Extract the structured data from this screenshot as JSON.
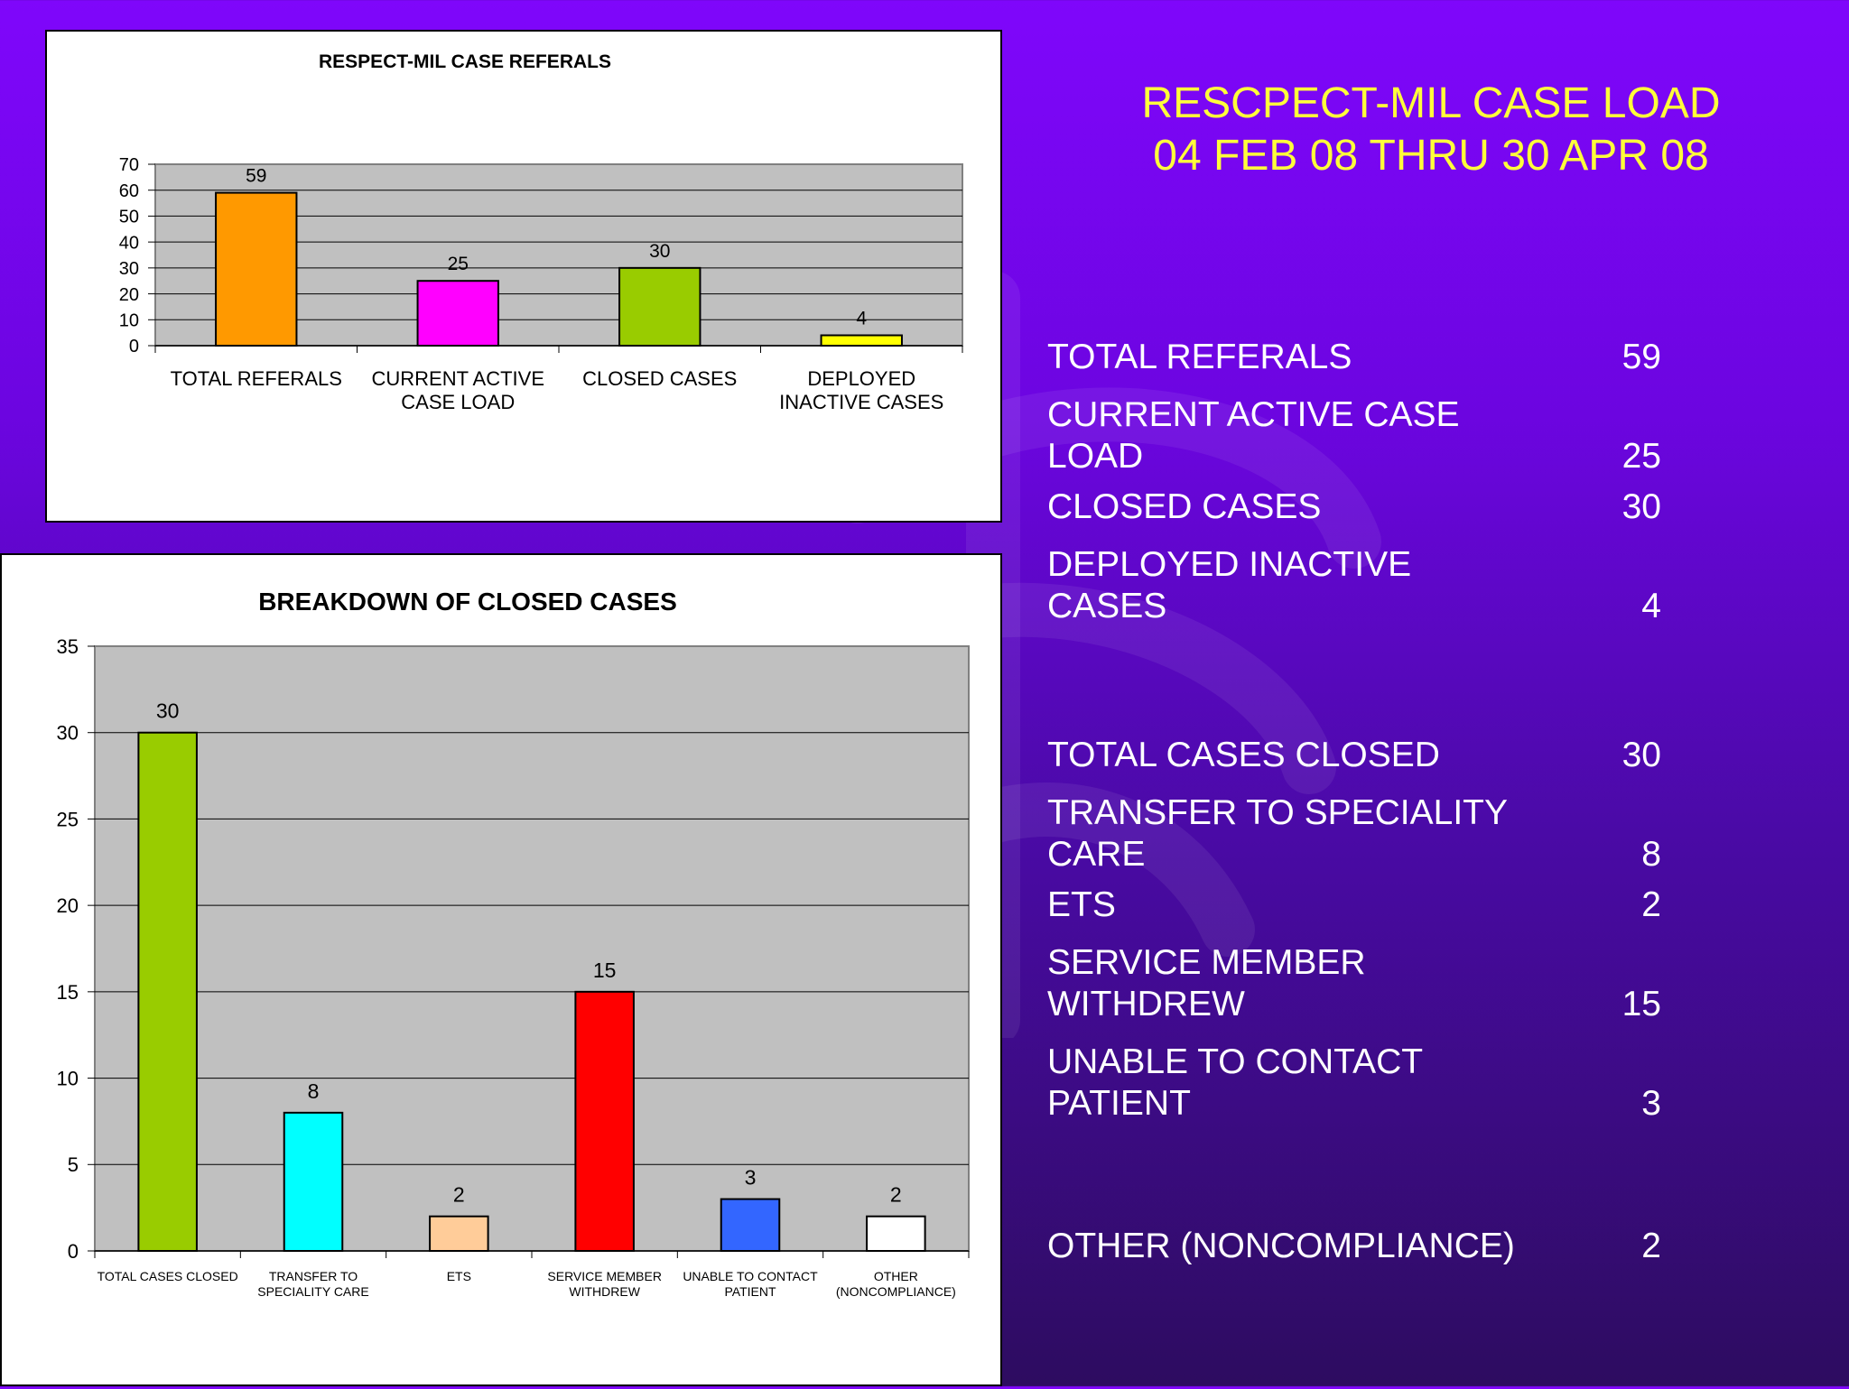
{
  "slide": {
    "title_line1": "RESCPECT-MIL CASE LOAD",
    "title_line2": "04 FEB 08 THRU 30 APR 08"
  },
  "stats": [
    {
      "label": "TOTAL REFERALS",
      "value": "59"
    },
    {
      "label": "CURRENT ACTIVE CASE\nLOAD",
      "value": "25"
    },
    {
      "label": "CLOSED CASES",
      "value": "30"
    },
    {
      "label": "DEPLOYED INACTIVE\nCASES",
      "value": "4"
    },
    {
      "label": "TOTAL CASES CLOSED",
      "value": "30"
    },
    {
      "label": "TRANSFER TO SPECIALITY\nCARE",
      "value": "8"
    },
    {
      "label": "ETS",
      "value": "2"
    },
    {
      "label": "SERVICE MEMBER\nWITHDREW",
      "value": "15"
    },
    {
      "label": "UNABLE TO CONTACT\nPATIENT",
      "value": "3"
    },
    {
      "label": "OTHER (NONCOMPLIANCE)",
      "value": "2"
    }
  ],
  "chart_data": [
    {
      "type": "bar",
      "title": "RESPECT-MIL CASE REFERALS",
      "categories": [
        [
          "TOTAL REFERALS"
        ],
        [
          "CURRENT ACTIVE",
          "CASE LOAD"
        ],
        [
          "CLOSED CASES"
        ],
        [
          "DEPLOYED",
          "INACTIVE CASES"
        ]
      ],
      "values": [
        59,
        25,
        30,
        4
      ],
      "colors": [
        "#ff9900",
        "#ff00ff",
        "#99cc00",
        "#ffff00"
      ],
      "ylim": [
        0,
        70
      ],
      "yticks": [
        0,
        10,
        20,
        30,
        40,
        50,
        60,
        70
      ],
      "grid": true,
      "xlabel": "",
      "ylabel": ""
    },
    {
      "type": "bar",
      "title": "BREAKDOWN OF CLOSED CASES",
      "categories": [
        [
          "TOTAL CASES CLOSED"
        ],
        [
          "TRANSFER TO",
          "SPECIALITY CARE"
        ],
        [
          "ETS"
        ],
        [
          "SERVICE MEMBER",
          "WITHDREW"
        ],
        [
          "UNABLE TO CONTACT",
          "PATIENT"
        ],
        [
          "OTHER",
          "(NONCOMPLIANCE)"
        ]
      ],
      "values": [
        30,
        8,
        2,
        15,
        3,
        2
      ],
      "colors": [
        "#99cc00",
        "#00ffff",
        "#ffcc99",
        "#ff0000",
        "#3366ff",
        "#ffffff"
      ],
      "ylim": [
        0,
        35
      ],
      "yticks": [
        0,
        5,
        10,
        15,
        20,
        25,
        30,
        35
      ],
      "grid": true,
      "xlabel": "",
      "ylabel": ""
    }
  ]
}
